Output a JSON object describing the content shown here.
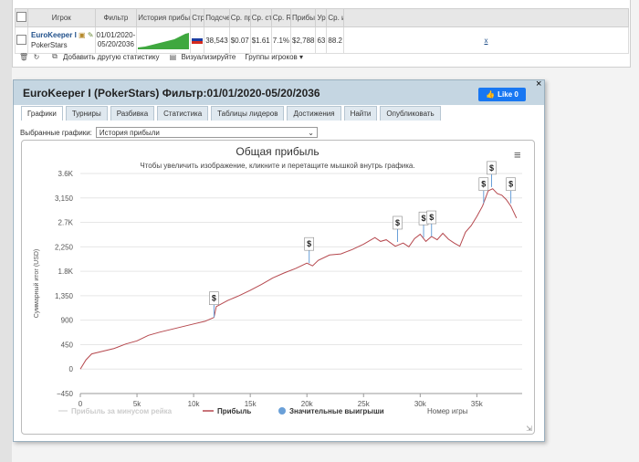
{
  "table": {
    "headers": [
      "Игрок",
      "Фильтр",
      "История прибыл",
      "Стр",
      "Подсчет",
      "Ср. приб",
      "Ср. ставк",
      "Ср. ROI",
      "Прибыль",
      "Урове",
      "Ср. игры / ,"
    ],
    "row": {
      "player": "EuroKeeper I",
      "room": "PokerStars",
      "filter_line1": "01/01/2020-",
      "filter_line2": "05/20/2036",
      "count": "38,543",
      "avg_profit": "$0.07",
      "avg_stake": "$1.61",
      "avg_roi": "7.1%",
      "profit": "$2,788",
      "level": "63",
      "avg_games": "88.2",
      "remove": "x"
    }
  },
  "toolbar": {
    "add_stats": "Добавить другую статистику",
    "visualize": "Визуализируйте",
    "groups": "Группы игроков"
  },
  "window": {
    "title": "EuroKeeper I (PokerStars) Фильтр:01/01/2020-05/20/2036",
    "like_label": "Like 0",
    "close": "×"
  },
  "tabs": [
    "Графики",
    "Турниры",
    "Разбивка",
    "Статистика",
    "Таблицы лидеров",
    "Достижения",
    "Найти",
    "Опубликовать"
  ],
  "selector": {
    "label": "Выбранные графики:",
    "value": "История прибыли"
  },
  "chart_data": {
    "type": "line",
    "title": "Общая прибыль",
    "subtitle": "Чтобы увеличить изображение, кликните и перетащите мышкой внутрь графика.",
    "ylabel": "Суммарный итог (USD)",
    "xlabel": "Номер игры",
    "x_ticks": [
      "0",
      "5k",
      "10k",
      "15k",
      "20k",
      "25k",
      "30k",
      "35k"
    ],
    "y_ticks": [
      "3.6K",
      "3,150",
      "2.7K",
      "2,250",
      "1.8K",
      "1,350",
      "900",
      "450",
      "0",
      "−450"
    ],
    "xlim": [
      0,
      39000
    ],
    "ylim": [
      -450,
      3600
    ],
    "series": [
      {
        "name": "Прибыль",
        "color": "#b5474d",
        "x": [
          0,
          500,
          1000,
          2000,
          3000,
          4000,
          5000,
          6000,
          7000,
          8000,
          9000,
          10000,
          11000,
          11800,
          12000,
          13000,
          14000,
          15000,
          16000,
          17000,
          18000,
          19000,
          20000,
          20500,
          21000,
          22000,
          23000,
          24000,
          25000,
          26000,
          26500,
          27000,
          27800,
          28500,
          29000,
          29500,
          30000,
          30500,
          31000,
          31500,
          32000,
          32500,
          33000,
          33500,
          34000,
          34500,
          35000,
          35500,
          36000,
          36400,
          36800,
          37200,
          37600,
          38000,
          38500
        ],
        "y": [
          0,
          170,
          280,
          330,
          380,
          460,
          520,
          620,
          680,
          730,
          780,
          830,
          880,
          950,
          1150,
          1260,
          1350,
          1450,
          1560,
          1680,
          1770,
          1850,
          1950,
          1900,
          2000,
          2100,
          2120,
          2200,
          2300,
          2420,
          2350,
          2380,
          2260,
          2320,
          2250,
          2400,
          2480,
          2350,
          2440,
          2380,
          2500,
          2390,
          2320,
          2260,
          2520,
          2640,
          2810,
          3000,
          3280,
          3320,
          3230,
          3200,
          3120,
          3000,
          2780
        ]
      },
      {
        "name": "Прибыль за минусом рейка",
        "color": "#dcdcdc",
        "x": [],
        "y": []
      }
    ],
    "markers_name": "Значительные выигрыши",
    "markers": [
      {
        "x": 11800,
        "y": 950
      },
      {
        "x": 20200,
        "y": 1950
      },
      {
        "x": 28000,
        "y": 2340
      },
      {
        "x": 30300,
        "y": 2420
      },
      {
        "x": 31000,
        "y": 2440
      },
      {
        "x": 35600,
        "y": 3050
      },
      {
        "x": 36300,
        "y": 3350
      },
      {
        "x": 38000,
        "y": 3050
      }
    ],
    "marker_label": "$",
    "legend_position": "bottom",
    "grid": true
  }
}
